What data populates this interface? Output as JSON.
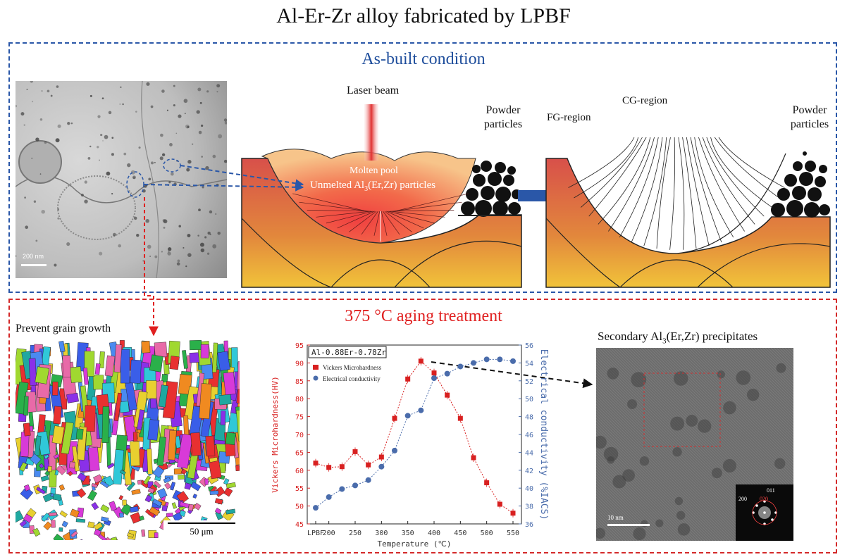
{
  "title": "Al-Er-Zr alloy fabricated by LPBF",
  "as_built": {
    "heading": "As-built condition",
    "tem_scale": "200 nm",
    "melt": {
      "laser_beam": "Laser beam",
      "molten_pool": "Molten pool",
      "unmelted_main": "Unmelted Al",
      "unmelted_sub": "3",
      "unmelted_rest": "(Er,Zr) particles",
      "powder_1": "Powder",
      "powder_2": "particles"
    },
    "solid": {
      "fg_region": "FG-region",
      "cg_region": "CG-region",
      "powder_1": "Powder",
      "powder_2": "particles"
    }
  },
  "aging": {
    "heading": "375 °C aging treatment",
    "prevent": "Prevent grain growth",
    "ebsd_scale": "50 μm",
    "precip_main": "Secondary Al",
    "precip_sub": "3",
    "precip_rest": "(Er,Zr) precipitates",
    "hrtem_scale": "10 nm",
    "fft_labels": [
      "200",
      "020",
      "011"
    ]
  },
  "colors": {
    "blue": "#1f4e9c",
    "red": "#e02020",
    "hv_series": "#d82020",
    "ec_series": "#4a6cab"
  },
  "chart_data": {
    "type": "line",
    "title": "Al-0.88Er-0.78Zr",
    "xlabel": "Temperature (℃)",
    "ylabel_left": "Vickers Microhardness(HV)",
    "ylabel_right": "Electrical conductivity (%IACS)",
    "categories": [
      "LPBF",
      "200",
      "225",
      "250",
      "275",
      "300",
      "325",
      "350",
      "375",
      "400",
      "425",
      "450",
      "475",
      "500",
      "525",
      "550"
    ],
    "x_tick_labels": [
      "LPBF",
      "200",
      "250",
      "300",
      "350",
      "400",
      "450",
      "500",
      "550"
    ],
    "ylim_left": [
      45,
      95
    ],
    "yticks_left": [
      "45",
      "50",
      "55",
      "60",
      "65",
      "70",
      "75",
      "80",
      "85",
      "90",
      "95"
    ],
    "ylim_right": [
      36,
      56
    ],
    "yticks_right": [
      "36",
      "38",
      "40",
      "42",
      "44",
      "46",
      "48",
      "50",
      "52",
      "54",
      "56"
    ],
    "legend": [
      "Vickers Microhardness",
      "Electrical conductivity"
    ],
    "series": [
      {
        "name": "Vickers Microhardness",
        "axis": "left",
        "values": [
          62.0,
          60.8,
          61.0,
          65.2,
          61.5,
          63.7,
          74.5,
          85.5,
          90.5,
          87.2,
          81.0,
          74.5,
          63.5,
          56.5,
          50.5,
          48.0
        ]
      },
      {
        "name": "Electrical conductivity",
        "axis": "right",
        "values": [
          37.8,
          39.0,
          39.9,
          40.3,
          40.9,
          42.4,
          44.2,
          48.1,
          48.7,
          52.3,
          52.8,
          53.6,
          54.0,
          54.4,
          54.4,
          54.2
        ]
      }
    ]
  }
}
